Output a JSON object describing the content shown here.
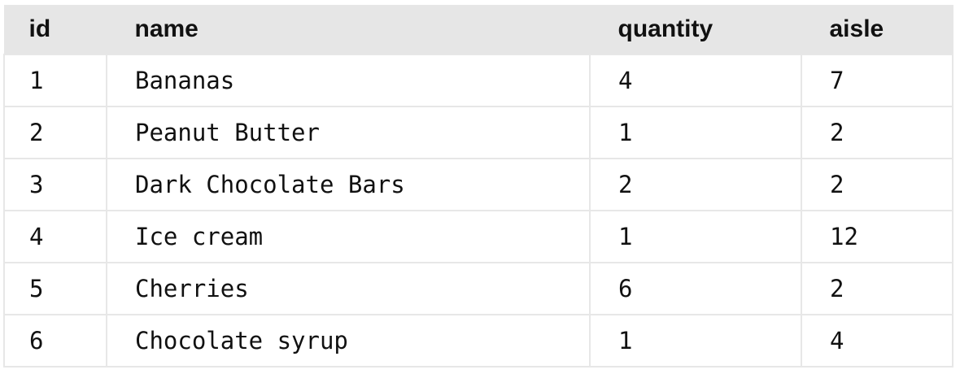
{
  "table": {
    "headers": [
      "id",
      "name",
      "quantity",
      "aisle"
    ],
    "rows": [
      [
        "1",
        "Bananas",
        "4",
        "7"
      ],
      [
        "2",
        "Peanut Butter",
        "1",
        "2"
      ],
      [
        "3",
        "Dark Chocolate Bars",
        "2",
        "2"
      ],
      [
        "4",
        "Ice cream",
        "1",
        "12"
      ],
      [
        "5",
        "Cherries",
        "6",
        "2"
      ],
      [
        "6",
        "Chocolate syrup",
        "1",
        "4"
      ]
    ]
  },
  "colors": {
    "header_background": "#e6e6e6",
    "grid_line": "#e7e7e7",
    "text": "#111111"
  }
}
